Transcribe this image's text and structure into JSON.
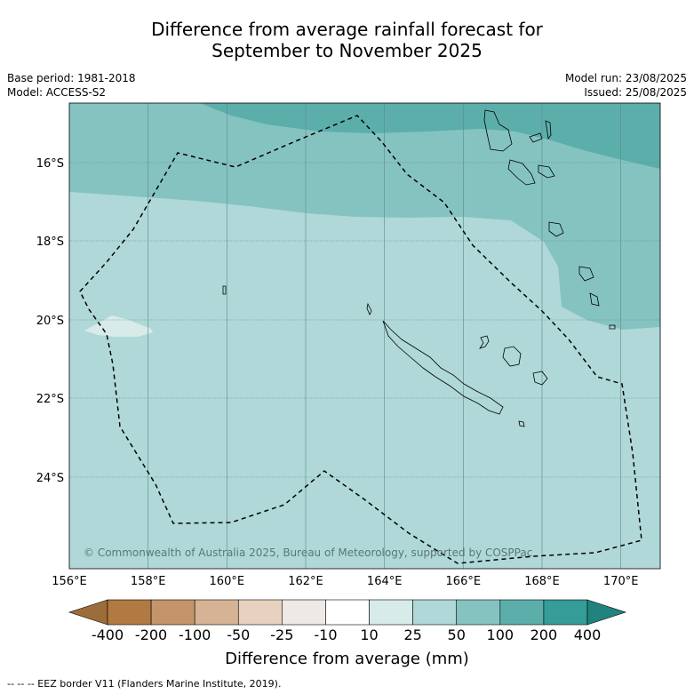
{
  "title_line1": "Difference from average rainfall forecast for",
  "title_line2": "September to November 2025",
  "base_period": "Base period: 1981-2018",
  "model": "Model: ACCESS-S2",
  "model_run": "Model run: 23/08/2025",
  "issued": "Issued: 25/08/2025",
  "copyright": "© Commonwealth of Australia 2025, Bureau of Meteorology, supported by COSPPac",
  "lon_ticks": [
    "156°E",
    "158°E",
    "160°E",
    "162°E",
    "164°E",
    "166°E",
    "168°E",
    "170°E"
  ],
  "lat_ticks": [
    "16°S",
    "18°S",
    "20°S",
    "22°S",
    "24°S"
  ],
  "colorbar": {
    "labels": [
      "-400",
      "-200",
      "-100",
      "-50",
      "-25",
      "-10",
      "10",
      "25",
      "50",
      "100",
      "200",
      "400"
    ],
    "colors": [
      "#9c6c3a",
      "#b07a42",
      "#c4956a",
      "#d5b394",
      "#e6d2be",
      "#efe9e5",
      "#ffffff",
      "#d7ebe9",
      "#b0d8d8",
      "#85c3c1",
      "#5caeab",
      "#369c97",
      "#21837d"
    ],
    "title": "Difference from average (mm)"
  },
  "footnote": "--  --  -- EEZ border V11 (Flanders Marine Institute, 2019).",
  "map": {
    "lon_range": [
      156,
      171
    ],
    "lat_range": [
      -26.3,
      -14.7
    ],
    "band_colors": {
      "50-100": "#85c3c1",
      "25-50": "#b0d8d8",
      "10-25": "#d7ebe9",
      "100-200": "#5caeab"
    },
    "regions": [
      {
        "name": "new-caledonia",
        "label": ""
      },
      {
        "name": "vanuatu",
        "label": ""
      },
      {
        "name": "loyalty-islands",
        "label": ""
      }
    ]
  }
}
